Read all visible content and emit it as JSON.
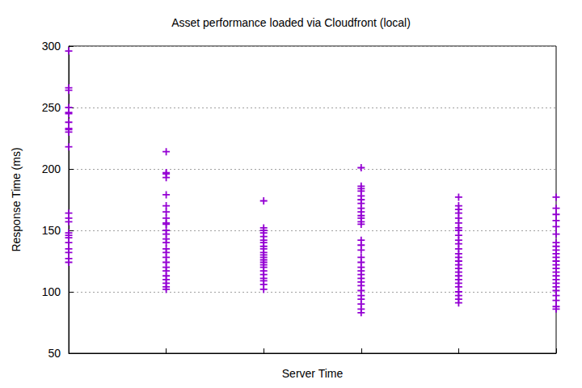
{
  "chart_data": {
    "type": "scatter",
    "title": "Asset performance loaded via Cloudfront (local)",
    "x_label": "Server Time",
    "y_label": "Response Time (ms)",
    "x": [
      0,
      0,
      0,
      0,
      0,
      0,
      0,
      0,
      0,
      0,
      0,
      0,
      0,
      0,
      0,
      0,
      0,
      0,
      0,
      0,
      0,
      0,
      1,
      1,
      1,
      1,
      1,
      1,
      1,
      1,
      1,
      1,
      1,
      1,
      1,
      1,
      1,
      1,
      1,
      1,
      1,
      1,
      1,
      1,
      1,
      1,
      1,
      2,
      2,
      2,
      2,
      2,
      2,
      2,
      2,
      2,
      2,
      2,
      2,
      2,
      2,
      2,
      2,
      2,
      2,
      2,
      2,
      2,
      2,
      3,
      3,
      3,
      3,
      3,
      3,
      3,
      3,
      3,
      3,
      3,
      3,
      3,
      3,
      3,
      3,
      3,
      3,
      3,
      3,
      3,
      3,
      3,
      3,
      3,
      3,
      3,
      3,
      3,
      3,
      4,
      4,
      4,
      4,
      4,
      4,
      4,
      4,
      4,
      4,
      4,
      4,
      4,
      4,
      4,
      4,
      4,
      4,
      4,
      4,
      4,
      4,
      4,
      4,
      4,
      4,
      5,
      5,
      5,
      5,
      5,
      5,
      5,
      5,
      5,
      5,
      5,
      5,
      5,
      5,
      5,
      5,
      5,
      5,
      5,
      5,
      5,
      5,
      5,
      5
    ],
    "values": [
      296,
      266,
      264,
      250,
      246,
      245,
      238,
      233,
      232,
      230,
      218,
      164,
      160,
      157,
      148,
      146,
      144,
      140,
      135,
      132,
      127,
      124,
      214,
      197,
      196,
      193,
      179,
      170,
      165,
      160,
      156,
      155,
      150,
      147,
      143,
      140,
      135,
      132,
      128,
      124,
      120,
      117,
      113,
      110,
      107,
      104,
      102,
      174,
      152,
      150,
      148,
      145,
      142,
      140,
      137,
      135,
      132,
      130,
      128,
      126,
      124,
      122,
      120,
      117,
      114,
      111,
      109,
      106,
      102,
      201,
      186,
      184,
      182,
      178,
      175,
      172,
      168,
      165,
      162,
      160,
      157,
      155,
      142,
      138,
      134,
      128,
      124,
      120,
      117,
      114,
      111,
      108,
      105,
      101,
      97,
      94,
      90,
      86,
      83,
      177,
      170,
      167,
      164,
      160,
      156,
      152,
      150,
      146,
      142,
      139,
      135,
      131,
      128,
      125,
      122,
      119,
      116,
      113,
      110,
      107,
      104,
      100,
      97,
      94,
      91,
      177,
      168,
      163,
      158,
      153,
      147,
      140,
      137,
      134,
      131,
      128,
      125,
      122,
      119,
      116,
      113,
      110,
      107,
      104,
      101,
      97,
      93,
      88,
      86
    ],
    "color": "#9400d3",
    "marker": "plus",
    "xlim": [
      0,
      5
    ],
    "xticks": [
      0,
      1,
      2,
      3,
      4,
      5
    ],
    "ylim": [
      50,
      300
    ],
    "yticks": [
      50,
      100,
      150,
      200,
      250,
      300
    ],
    "grid": true,
    "tick_labels": "y"
  }
}
